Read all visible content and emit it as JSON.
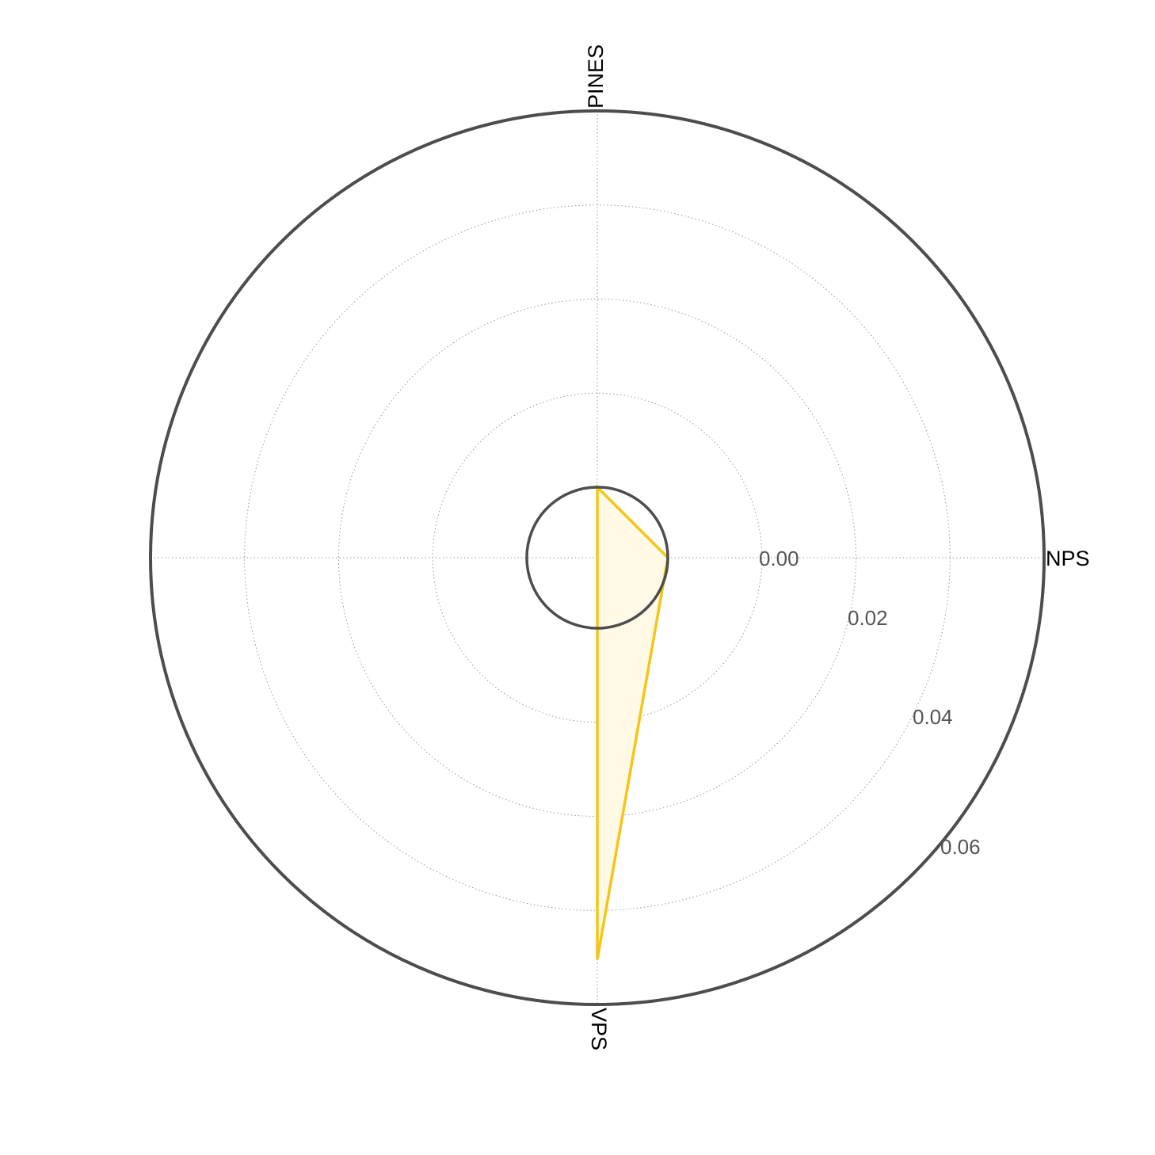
{
  "chart_data": {
    "type": "radar",
    "title": "",
    "axes": [
      "NPS",
      "VPS",
      "PINES"
    ],
    "radial_ticks": [
      "0.00",
      "0.02",
      "0.04",
      "0.06"
    ],
    "radial_range": [
      -0.015,
      0.08
    ],
    "grid": true,
    "series": [
      {
        "values": [
          0.0,
          0.0704,
          0.0
        ],
        "color": "#F5C518",
        "fill": "#FFF9E6"
      }
    ],
    "reference_value": 0.0,
    "reference_color": "#4D4D4D",
    "outer_ring_color": "#4D4D4D"
  }
}
